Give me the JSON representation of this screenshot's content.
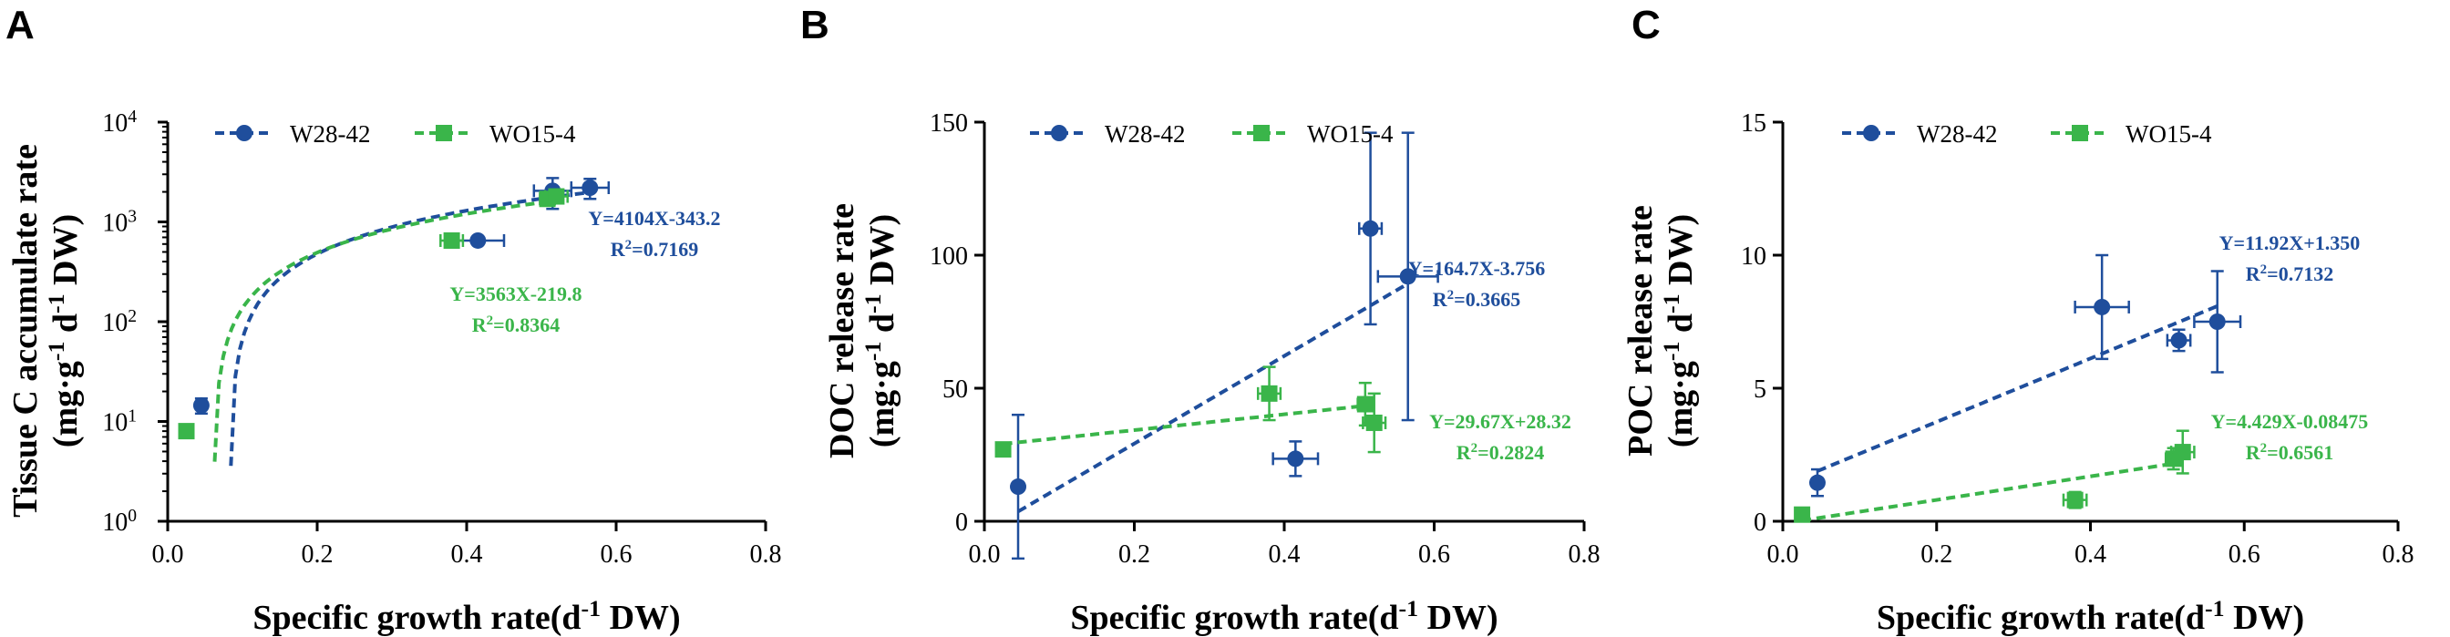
{
  "chart_data": [
    {
      "type": "scatter",
      "panel": "A",
      "yscale": "log",
      "ylabel": "Tissue C accumulate rate",
      "ylabel_units": "(mg·g⁻¹ d⁻¹ DW)",
      "xlabel": "Specific growth rate(d⁻¹ DW)",
      "xlim": [
        0,
        0.8
      ],
      "ylim": [
        1,
        10000
      ],
      "xticks": [
        "0.0",
        "0.2",
        "0.4",
        "0.6",
        "0.8"
      ],
      "yticks": [
        {
          "value": 1,
          "base": "10",
          "exp": "0"
        },
        {
          "value": 10,
          "base": "10",
          "exp": "1"
        },
        {
          "value": 100,
          "base": "10",
          "exp": "2"
        },
        {
          "value": 1000,
          "base": "10",
          "exp": "3"
        },
        {
          "value": 10000,
          "base": "10",
          "exp": "4"
        }
      ],
      "legend": "top-left",
      "series": [
        {
          "name": "W28-42",
          "color": "#1f4e9c",
          "marker": "circle",
          "points": [
            {
              "x": 0.045,
              "y": 14.5,
              "yerr": 2.5
            },
            {
              "x": 0.415,
              "y": 650,
              "xerr": 0.035
            },
            {
              "x": 0.515,
              "y": 2050,
              "xerr": 0.025,
              "yerr": 700
            },
            {
              "x": 0.565,
              "y": 2200,
              "xerr": 0.025,
              "yerr": 500
            }
          ],
          "fit": {
            "slope": 4104,
            "intercept": -343.2,
            "x_range": [
              0.0845,
              0.565
            ]
          },
          "equation": "Y=4104X-343.2",
          "r2": "R²=0.7169"
        },
        {
          "name": "WO15-4",
          "color": "#3ab54a",
          "marker": "square",
          "points": [
            {
              "x": 0.025,
              "y": 8
            },
            {
              "x": 0.38,
              "y": 650,
              "xerr": 0.015
            },
            {
              "x": 0.508,
              "y": 1700,
              "xerr": 0.01
            },
            {
              "x": 0.52,
              "y": 1800,
              "xerr": 0.015
            }
          ],
          "fit": {
            "slope": 3563,
            "intercept": -219.8,
            "x_range": [
              0.0628,
              0.52
            ]
          },
          "equation": "Y=3563X-219.8",
          "r2": "R²=0.8364"
        }
      ]
    },
    {
      "type": "scatter",
      "panel": "B",
      "yscale": "linear",
      "ylabel": "DOC release rate",
      "ylabel_units": "(mg·g⁻¹ d⁻¹ DW)",
      "xlabel": "Specific growth rate(d⁻¹ DW)",
      "xlim": [
        0,
        0.8
      ],
      "ylim": [
        0,
        150
      ],
      "xticks": [
        "0.0",
        "0.2",
        "0.4",
        "0.6",
        "0.8"
      ],
      "yticks": [
        "0",
        "50",
        "100",
        "150"
      ],
      "legend": "top-left",
      "series": [
        {
          "name": "W28-42",
          "color": "#1f4e9c",
          "marker": "circle",
          "points": [
            {
              "x": 0.045,
              "y": 13,
              "yerr": 27
            },
            {
              "x": 0.415,
              "y": 23.5,
              "xerr": 0.03,
              "yerr": 6.5
            },
            {
              "x": 0.515,
              "y": 110,
              "xerr": 0.015,
              "yerr": 36
            },
            {
              "x": 0.565,
              "y": 92,
              "xerr": 0.04,
              "yerr": 54
            }
          ],
          "fit": {
            "slope": 164.7,
            "intercept": -3.756,
            "x_range": [
              0.045,
              0.565
            ]
          },
          "equation": "Y=164.7X-3.756",
          "r2": "R²=0.3665"
        },
        {
          "name": "WO15-4",
          "color": "#3ab54a",
          "marker": "square",
          "points": [
            {
              "x": 0.025,
              "y": 27
            },
            {
              "x": 0.38,
              "y": 48,
              "xerr": 0.015,
              "yerr": 10
            },
            {
              "x": 0.508,
              "y": 44,
              "xerr": 0.01,
              "yerr": 8
            },
            {
              "x": 0.52,
              "y": 37,
              "xerr": 0.015,
              "yerr": 11
            }
          ],
          "fit": {
            "slope": 29.67,
            "intercept": 28.32,
            "x_range": [
              0.025,
              0.52
            ]
          },
          "equation": "Y=29.67X+28.32",
          "r2": "R²=0.2824"
        }
      ]
    },
    {
      "type": "scatter",
      "panel": "C",
      "yscale": "linear",
      "ylabel": "POC release rate",
      "ylabel_units": "(mg·g⁻¹ d⁻¹ DW)",
      "xlabel": "Specific growth rate(d⁻¹ DW)",
      "xlim": [
        0,
        0.8
      ],
      "ylim": [
        0,
        15
      ],
      "xticks": [
        "0.0",
        "0.2",
        "0.4",
        "0.6",
        "0.8"
      ],
      "yticks": [
        "0",
        "5",
        "10",
        "15"
      ],
      "legend": "top-left",
      "series": [
        {
          "name": "W28-42",
          "color": "#1f4e9c",
          "marker": "circle",
          "points": [
            {
              "x": 0.045,
              "y": 1.45,
              "yerr": 0.5
            },
            {
              "x": 0.415,
              "y": 8.05,
              "xerr": 0.035,
              "yerr": 1.95
            },
            {
              "x": 0.515,
              "y": 6.8,
              "xerr": 0.015,
              "yerr": 0.4
            },
            {
              "x": 0.565,
              "y": 7.5,
              "xerr": 0.03,
              "yerr": 1.9
            }
          ],
          "fit": {
            "slope": 11.92,
            "intercept": 1.35,
            "x_range": [
              0.045,
              0.565
            ]
          },
          "equation": "Y=11.92X+1.350",
          "r2": "R²=0.7132"
        },
        {
          "name": "WO15-4",
          "color": "#3ab54a",
          "marker": "square",
          "points": [
            {
              "x": 0.025,
              "y": 0.25
            },
            {
              "x": 0.38,
              "y": 0.8,
              "xerr": 0.015,
              "yerr": 0.3
            },
            {
              "x": 0.508,
              "y": 2.35,
              "xerr": 0.01,
              "yerr": 0.4
            },
            {
              "x": 0.52,
              "y": 2.6,
              "xerr": 0.015,
              "yerr": 0.8
            }
          ],
          "fit": {
            "slope": 4.429,
            "intercept": -0.08475,
            "x_range": [
              0.025,
              0.52
            ]
          },
          "equation": "Y=4.429X-0.08475",
          "r2": "R²=0.6561"
        }
      ]
    }
  ]
}
